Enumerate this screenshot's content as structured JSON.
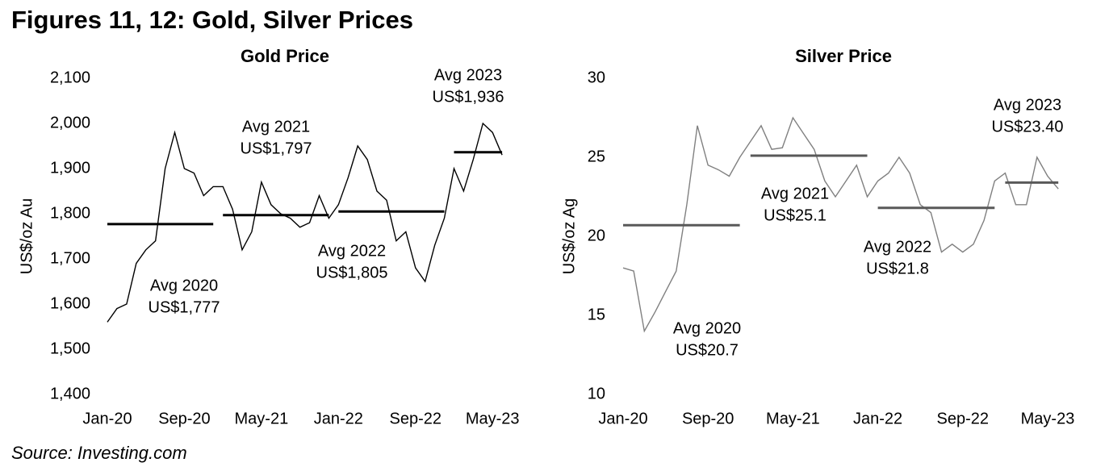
{
  "title": "Figures 11, 12: Gold, Silver Prices",
  "source": "Source: Investing.com",
  "chart_data": [
    {
      "type": "line",
      "title": "Gold Price",
      "ylabel": "US$/oz Au",
      "categories": [
        "Jan-20",
        null,
        null,
        null,
        null,
        null,
        null,
        null,
        "Sep-20",
        null,
        null,
        null,
        null,
        null,
        null,
        null,
        "May-21",
        null,
        null,
        null,
        null,
        null,
        null,
        null,
        "Jan-22",
        null,
        null,
        null,
        null,
        null,
        null,
        null,
        "Sep-22",
        null,
        null,
        null,
        null,
        null,
        null,
        null,
        "May-23",
        null
      ],
      "ylim": [
        1400,
        2100
      ],
      "yticks": [
        {
          "value": 1400,
          "label": "1,400"
        },
        {
          "value": 1500,
          "label": "1,500"
        },
        {
          "value": 1600,
          "label": "1,600"
        },
        {
          "value": 1700,
          "label": "1,700"
        },
        {
          "value": 1800,
          "label": "1,800"
        },
        {
          "value": 1900,
          "label": "1,900"
        },
        {
          "value": 2000,
          "label": "2,000"
        },
        {
          "value": 2100,
          "label": "2,100"
        }
      ],
      "series": [
        {
          "color": "#000000",
          "values": [
            1560,
            1590,
            1600,
            1690,
            1720,
            1740,
            1900,
            1980,
            1900,
            1890,
            1840,
            1860,
            1860,
            1810,
            1720,
            1760,
            1870,
            1820,
            1800,
            1790,
            1770,
            1780,
            1840,
            1790,
            1820,
            1880,
            1950,
            1920,
            1850,
            1830,
            1740,
            1760,
            1680,
            1650,
            1730,
            1790,
            1900,
            1850,
            1920,
            2000,
            1980,
            1930
          ]
        },
        {
          "name": "Avg 2020",
          "value_label": "US$1,777",
          "color": "#000000",
          "values": [
            1777,
            1777,
            1777,
            1777,
            1777,
            1777,
            1777,
            1777,
            1777,
            1777,
            1777,
            1777,
            null,
            null,
            null,
            null,
            null,
            null,
            null,
            null,
            null,
            null,
            null,
            null,
            null,
            null,
            null,
            null,
            null,
            null,
            null,
            null,
            null,
            null,
            null,
            null,
            null,
            null,
            null,
            null,
            null,
            null
          ]
        },
        {
          "name": "Avg 2021",
          "value_label": "US$1,797",
          "color": "#000000",
          "values": [
            null,
            null,
            null,
            null,
            null,
            null,
            null,
            null,
            null,
            null,
            null,
            null,
            1797,
            1797,
            1797,
            1797,
            1797,
            1797,
            1797,
            1797,
            1797,
            1797,
            1797,
            1797,
            null,
            null,
            null,
            null,
            null,
            null,
            null,
            null,
            null,
            null,
            null,
            null,
            null,
            null,
            null,
            null,
            null,
            null
          ]
        },
        {
          "name": "Avg 2022",
          "value_label": "US$1,805",
          "color": "#000000",
          "values": [
            null,
            null,
            null,
            null,
            null,
            null,
            null,
            null,
            null,
            null,
            null,
            null,
            null,
            null,
            null,
            null,
            null,
            null,
            null,
            null,
            null,
            null,
            null,
            null,
            1805,
            1805,
            1805,
            1805,
            1805,
            1805,
            1805,
            1805,
            1805,
            1805,
            1805,
            1805,
            null,
            null,
            null,
            null,
            null,
            null
          ]
        },
        {
          "name": "Avg 2023",
          "value_label": "US$1,936",
          "color": "#000000",
          "values": [
            null,
            null,
            null,
            null,
            null,
            null,
            null,
            null,
            null,
            null,
            null,
            null,
            null,
            null,
            null,
            null,
            null,
            null,
            null,
            null,
            null,
            null,
            null,
            null,
            null,
            null,
            null,
            null,
            null,
            null,
            null,
            null,
            null,
            null,
            null,
            null,
            1936,
            1936,
            1936,
            1936,
            1936,
            1936
          ]
        }
      ]
    },
    {
      "type": "line",
      "title": "Silver Price",
      "ylabel": "US$/oz Ag",
      "categories": [
        "Jan-20",
        null,
        null,
        null,
        null,
        null,
        null,
        null,
        "Sep-20",
        null,
        null,
        null,
        null,
        null,
        null,
        null,
        "May-21",
        null,
        null,
        null,
        null,
        null,
        null,
        null,
        "Jan-22",
        null,
        null,
        null,
        null,
        null,
        null,
        null,
        "Sep-22",
        null,
        null,
        null,
        null,
        null,
        null,
        null,
        "May-23",
        null
      ],
      "ylim": [
        10,
        30
      ],
      "yticks": [
        10,
        15,
        20,
        25,
        30
      ],
      "series": [
        {
          "color": "#808080",
          "values": [
            18,
            17.8,
            14,
            15.2,
            16.5,
            17.8,
            22,
            27,
            24.5,
            24.2,
            23.8,
            25,
            26,
            27,
            25.5,
            25.6,
            27.5,
            26.5,
            25.5,
            23.5,
            22.5,
            23.5,
            24.5,
            22.5,
            23.5,
            24,
            25,
            24,
            22,
            21.5,
            19,
            19.5,
            19,
            19.5,
            21,
            23.5,
            24,
            22,
            22,
            25,
            23.8,
            23
          ]
        },
        {
          "name": "Avg 2020",
          "value_label": "US$20.7",
          "color": "#595959",
          "values": [
            20.7,
            20.7,
            20.7,
            20.7,
            20.7,
            20.7,
            20.7,
            20.7,
            20.7,
            20.7,
            20.7,
            20.7,
            null,
            null,
            null,
            null,
            null,
            null,
            null,
            null,
            null,
            null,
            null,
            null,
            null,
            null,
            null,
            null,
            null,
            null,
            null,
            null,
            null,
            null,
            null,
            null,
            null,
            null,
            null,
            null,
            null,
            null
          ]
        },
        {
          "name": "Avg 2021",
          "value_label": "US$25.1",
          "color": "#595959",
          "values": [
            null,
            null,
            null,
            null,
            null,
            null,
            null,
            null,
            null,
            null,
            null,
            null,
            25.1,
            25.1,
            25.1,
            25.1,
            25.1,
            25.1,
            25.1,
            25.1,
            25.1,
            25.1,
            25.1,
            25.1,
            null,
            null,
            null,
            null,
            null,
            null,
            null,
            null,
            null,
            null,
            null,
            null,
            null,
            null,
            null,
            null,
            null,
            null
          ]
        },
        {
          "name": "Avg 2022",
          "value_label": "US$21.8",
          "color": "#595959",
          "values": [
            null,
            null,
            null,
            null,
            null,
            null,
            null,
            null,
            null,
            null,
            null,
            null,
            null,
            null,
            null,
            null,
            null,
            null,
            null,
            null,
            null,
            null,
            null,
            null,
            21.8,
            21.8,
            21.8,
            21.8,
            21.8,
            21.8,
            21.8,
            21.8,
            21.8,
            21.8,
            21.8,
            21.8,
            null,
            null,
            null,
            null,
            null,
            null
          ]
        },
        {
          "name": "Avg 2023",
          "value_label": "US$23.40",
          "color": "#595959",
          "values": [
            null,
            null,
            null,
            null,
            null,
            null,
            null,
            null,
            null,
            null,
            null,
            null,
            null,
            null,
            null,
            null,
            null,
            null,
            null,
            null,
            null,
            null,
            null,
            null,
            null,
            null,
            null,
            null,
            null,
            null,
            null,
            null,
            null,
            null,
            null,
            null,
            23.4,
            23.4,
            23.4,
            23.4,
            23.4,
            23.4
          ]
        }
      ]
    }
  ]
}
